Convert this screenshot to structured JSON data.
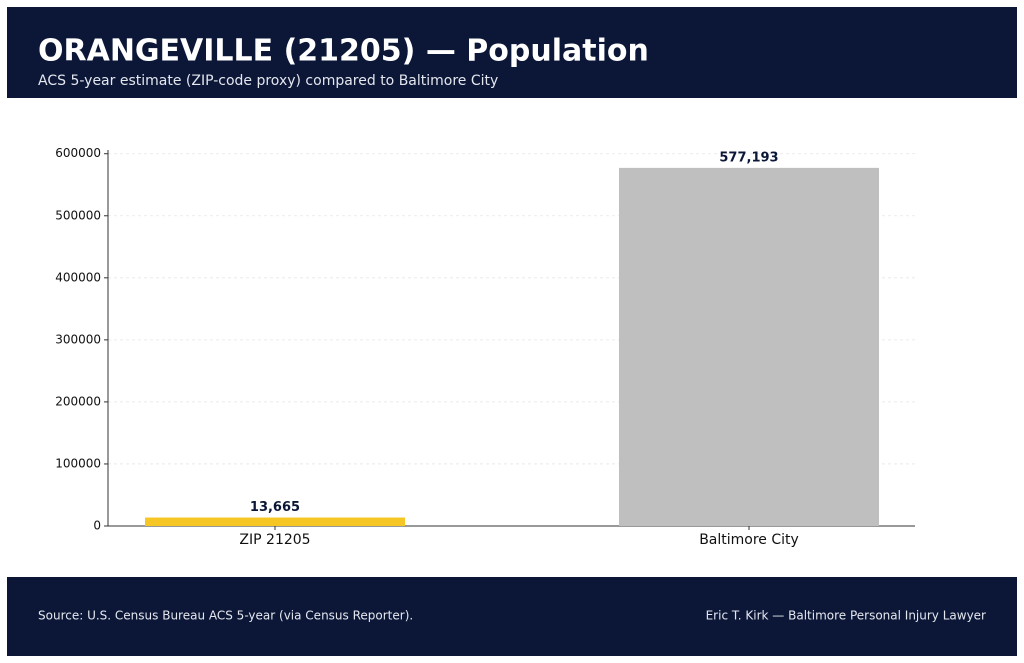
{
  "chart_data": {
    "type": "bar",
    "title": "ORANGEVILLE (21205) — Population",
    "subtitle": "ACS 5-year estimate (ZIP-code proxy) compared to Baltimore City",
    "categories": [
      "ZIP 21205",
      "Baltimore City"
    ],
    "values": [
      13665,
      577193
    ],
    "value_labels": [
      "13,665",
      "577,193"
    ],
    "colors": [
      "#f6c624",
      "#bfbfbf"
    ],
    "ylim": [
      0,
      606000
    ],
    "yticks": [
      0,
      100000,
      200000,
      300000,
      400000,
      500000,
      600000
    ],
    "grid": true,
    "source": "Source: U.S. Census Bureau ACS 5-year (via Census Reporter).",
    "credit": "Eric T. Kirk — Baltimore Personal Injury Lawyer"
  }
}
